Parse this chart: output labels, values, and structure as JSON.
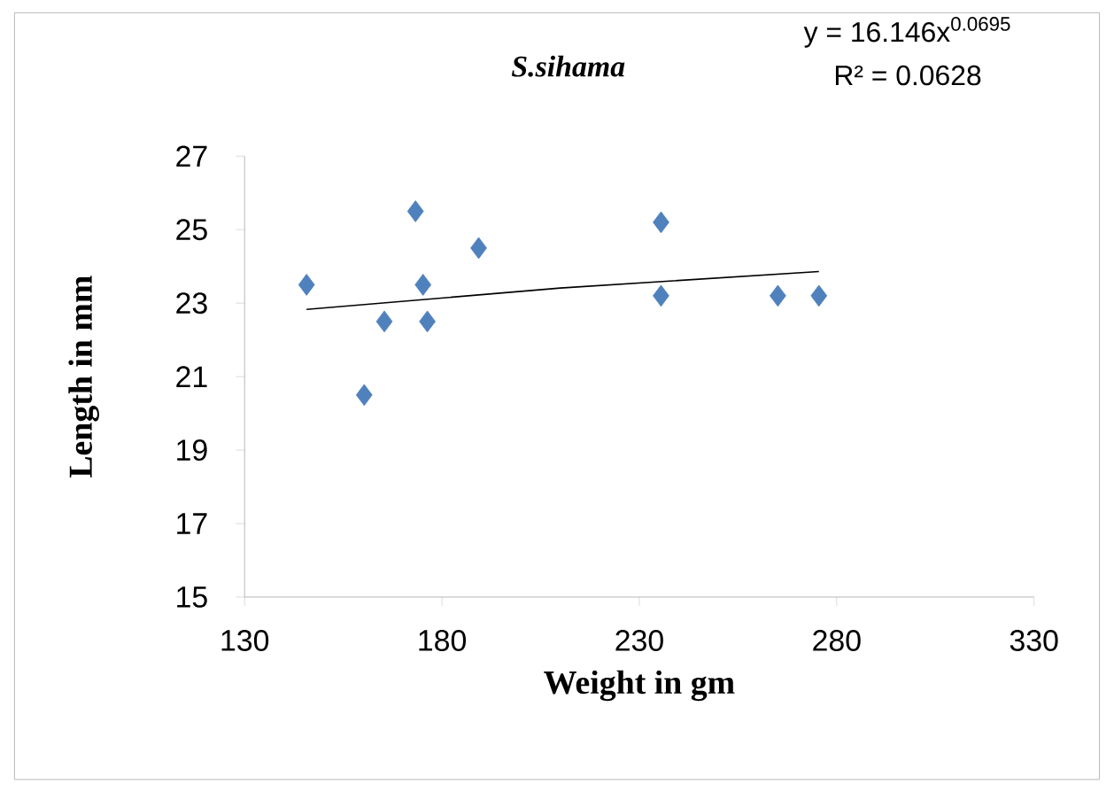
{
  "chart_data": {
    "type": "scatter",
    "title": "S.sihama",
    "xlabel": "Weight in gm",
    "ylabel": "Length in mm",
    "annotations": [
      "y = 16.146x$^{0.0695}$",
      "R² = 0.0628"
    ],
    "xlim": [
      130,
      330
    ],
    "ylim": [
      15,
      27
    ],
    "xticks": [
      130,
      180,
      230,
      280,
      330
    ],
    "yticks": [
      15,
      17,
      19,
      21,
      23,
      25,
      27
    ],
    "series": [
      {
        "type": "scatter",
        "marker": "diamond",
        "color": "#4f81bd",
        "x": [
          145.7,
          173.3,
          175.2,
          165.4,
          176.3,
          160.3,
          189.3,
          235.5,
          235.5,
          265.1,
          275.5
        ],
        "values": [
          23.5,
          25.5,
          23.5,
          22.5,
          22.5,
          20.5,
          24.5,
          25.2,
          23.2,
          23.2,
          23.2
        ]
      },
      {
        "type": "line",
        "marker": "none",
        "color": "#000000",
        "x": [
          145.7,
          210,
          275.5
        ],
        "values": [
          22.83,
          23.41,
          23.86
        ]
      }
    ]
  }
}
